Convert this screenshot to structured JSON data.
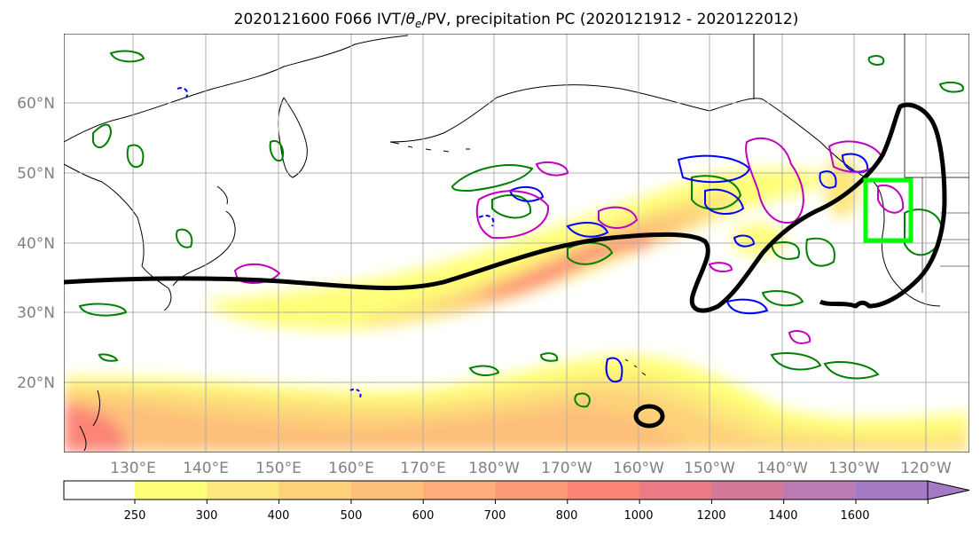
{
  "title": {
    "prefix": "2020121600 F066 IVT/",
    "theta": "θ",
    "theta_sub": "e",
    "suffix": "/PV, precipitation PC (2020121912 - 2020122012)"
  },
  "map": {
    "lat_labels": [
      "60°N",
      "50°N",
      "40°N",
      "30°N",
      "20°N"
    ],
    "lon_labels": [
      "130°E",
      "140°E",
      "150°E",
      "160°E",
      "170°E",
      "180°W",
      "170°W",
      "160°W",
      "150°W",
      "140°W",
      "130°W",
      "120°W"
    ],
    "layers": {
      "ivt_fill": "IVT shading",
      "theta_e_contour": "black",
      "pv_contour": "magenta",
      "precip_pc_pos": "green",
      "precip_pc_neg": "blue",
      "target_box": "lime"
    }
  },
  "colorbar": {
    "ticks": [
      "250",
      "300",
      "400",
      "500",
      "600",
      "700",
      "800",
      "1000",
      "1200",
      "1400",
      "1600"
    ],
    "colors": [
      "#fffe78",
      "#fde77c",
      "#fdd17a",
      "#fdbf7a",
      "#fdae7a",
      "#fd9a78",
      "#fc8477",
      "#ec7a86",
      "#d4789a",
      "#b97cb5",
      "#a47ac4"
    ]
  },
  "colors": {
    "pv": "#c000c0",
    "precip_pos": "#008000",
    "precip_neg": "#0000ff",
    "theta_e": "#000000",
    "target_box": "#00ff00",
    "grid": "#b0b0b0"
  }
}
